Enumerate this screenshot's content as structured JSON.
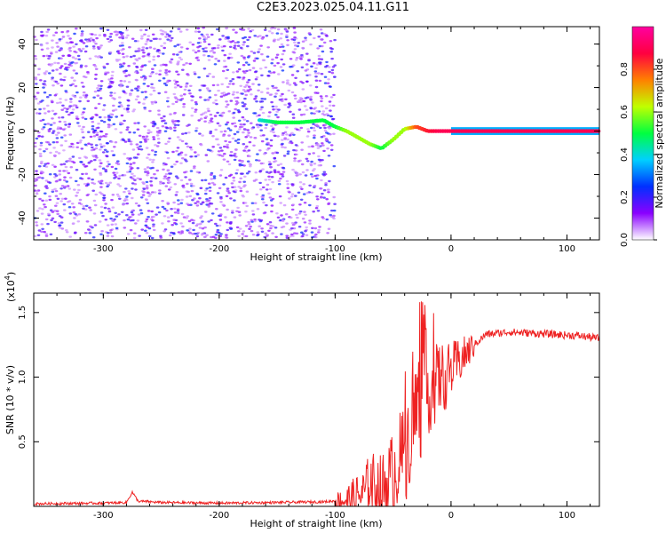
{
  "figure": {
    "title": "C2E3.2023.025.04.11.G11"
  },
  "chart_data": [
    {
      "type": "heatmap",
      "xlabel": "Height of straight line (km)",
      "ylabel": "Frequency (Hz)",
      "xlim": [
        -360,
        128
      ],
      "ylim": [
        -50,
        48
      ],
      "xticks": [
        -300,
        -200,
        -100,
        0,
        100
      ],
      "yticks": [
        -40,
        -20,
        0,
        20,
        40
      ],
      "colorbar": {
        "label": "Normalized spectral amplitude",
        "range": [
          0,
          1
        ],
        "ticks": [
          0.0,
          0.2,
          0.4,
          0.6,
          0.8
        ],
        "colormap": [
          "#ffffff",
          "#8a00ff",
          "#0030ff",
          "#00d0ff",
          "#00ff40",
          "#c0ff00",
          "#ff8000",
          "#ff0040",
          "#ff00a0"
        ]
      },
      "noise_region_x": [
        -360,
        -100
      ],
      "signal_track": {
        "x": [
          -165,
          -150,
          -130,
          -110,
          -100,
          -90,
          -80,
          -70,
          -60,
          -50,
          -40,
          -30,
          -20,
          -10,
          0,
          30,
          60,
          90,
          128
        ],
        "frequency": [
          5,
          4,
          4,
          5,
          2,
          0,
          -3,
          -6,
          -8,
          -4,
          1,
          2,
          0,
          0,
          0,
          0,
          0,
          0,
          0
        ],
        "amplitude": [
          0.4,
          0.5,
          0.5,
          0.5,
          0.5,
          0.6,
          0.6,
          0.6,
          0.5,
          0.6,
          0.6,
          0.8,
          0.85,
          0.9,
          0.9,
          0.9,
          0.9,
          0.9,
          0.9
        ]
      },
      "grid": false
    },
    {
      "type": "line",
      "xlabel": "Height of straight line (km)",
      "ylabel": "SNR (10 * v/v)",
      "y_scale_label": "(x10",
      "y_scale_exponent": "4",
      "y_scale_close": ")",
      "xlim": [
        -360,
        128
      ],
      "ylim": [
        0,
        1.65
      ],
      "xticks": [
        -300,
        -200,
        -100,
        0,
        100
      ],
      "yticks": [
        0.5,
        1.0,
        1.5
      ],
      "ytick_labels": [
        "0.5",
        "1.0",
        "1.5"
      ],
      "series": [
        {
          "color": "#ee2222",
          "x": [
            -360,
            -300,
            -280,
            -275,
            -270,
            -250,
            -200,
            -150,
            -110,
            -90,
            -75,
            -70,
            -60,
            -50,
            -45,
            -40,
            -35,
            -30,
            -25,
            -20,
            -15,
            -10,
            -5,
            0,
            10,
            20,
            30,
            50,
            70,
            90,
            110,
            128
          ],
          "y": [
            0.02,
            0.025,
            0.03,
            0.11,
            0.04,
            0.03,
            0.025,
            0.03,
            0.035,
            0.05,
            0.1,
            0.2,
            0.12,
            0.25,
            0.35,
            0.4,
            0.6,
            0.75,
            0.85,
            0.9,
            0.92,
            1.0,
            1.0,
            1.05,
            1.15,
            1.25,
            1.33,
            1.35,
            1.34,
            1.33,
            1.32,
            1.3
          ]
        }
      ],
      "grid": false
    }
  ]
}
